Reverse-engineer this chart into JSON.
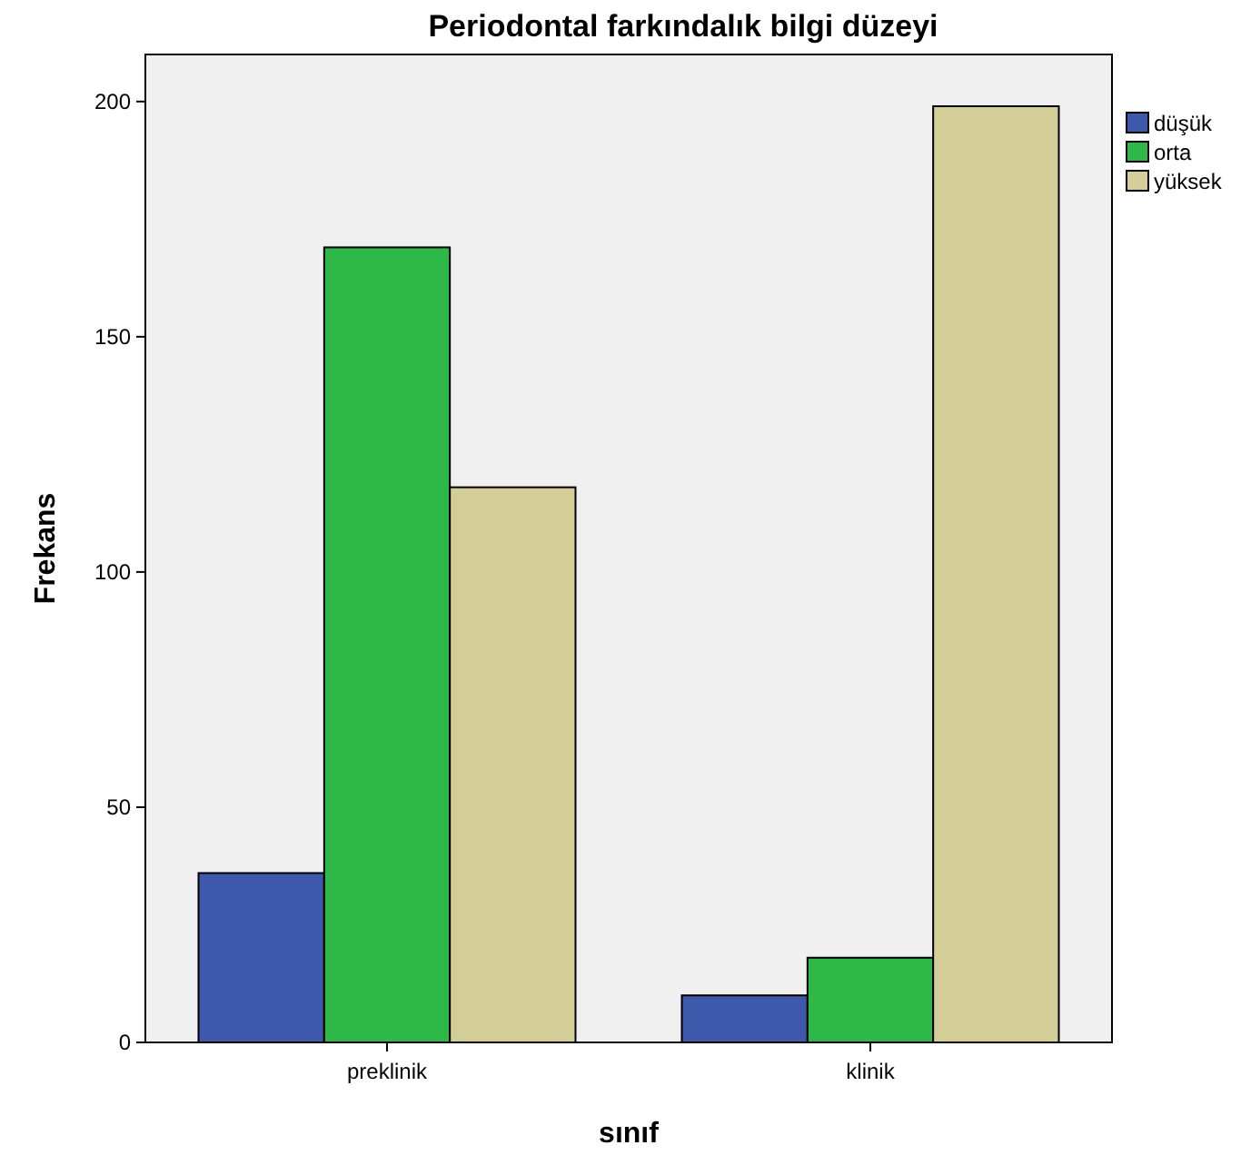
{
  "chart_data": {
    "type": "bar",
    "title": "Periodontal farkındalık bilgi düzeyi",
    "xlabel": "sınıf",
    "ylabel": "Frekans",
    "categories": [
      "preklinik",
      "klinik"
    ],
    "series": [
      {
        "name": "düşük",
        "color": "#3e58ac",
        "values": [
          36,
          10
        ]
      },
      {
        "name": "orta",
        "color": "#2eb848",
        "values": [
          169,
          18
        ]
      },
      {
        "name": "yüksek",
        "color": "#d3ce97",
        "values": [
          118,
          199
        ]
      }
    ],
    "ylim": [
      0,
      210
    ],
    "yticks": [
      0,
      50,
      100,
      150,
      200
    ],
    "legend": "right",
    "grid": false
  }
}
